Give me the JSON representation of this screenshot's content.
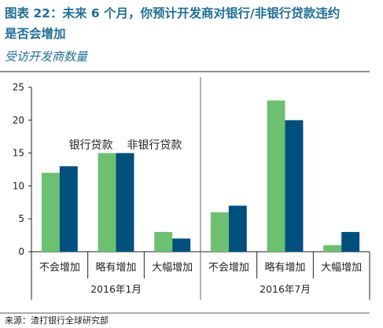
{
  "figure": {
    "title_lines": [
      "图表 22：未来 6 个月，你预计开发商对银行/非银行贷款违约",
      "是否会增加"
    ],
    "subtitle": "受访开发商数量",
    "source": "来源：渣打银行全球研究部"
  },
  "chart_data": {
    "type": "bar",
    "ylim": [
      0,
      25
    ],
    "yticks": [
      "0",
      "5",
      "10",
      "15",
      "20",
      "25"
    ],
    "legend_placement": "inline above the middle bars of the first panel",
    "series": [
      {
        "name": "银行贷款",
        "color": "#6cc070"
      },
      {
        "name": "非银行贷款",
        "color": "#00507e"
      }
    ],
    "groups": [
      {
        "name": "2016年1月",
        "categories": [
          "不会增加",
          "略有增加",
          "大幅增加"
        ],
        "values": [
          [
            12,
            13
          ],
          [
            15,
            15
          ],
          [
            3,
            2
          ]
        ]
      },
      {
        "name": "2016年7月",
        "categories": [
          "不会增加",
          "略有增加",
          "大幅增加"
        ],
        "values": [
          [
            6,
            7
          ],
          [
            23,
            20
          ],
          [
            1,
            3
          ]
        ]
      }
    ]
  }
}
